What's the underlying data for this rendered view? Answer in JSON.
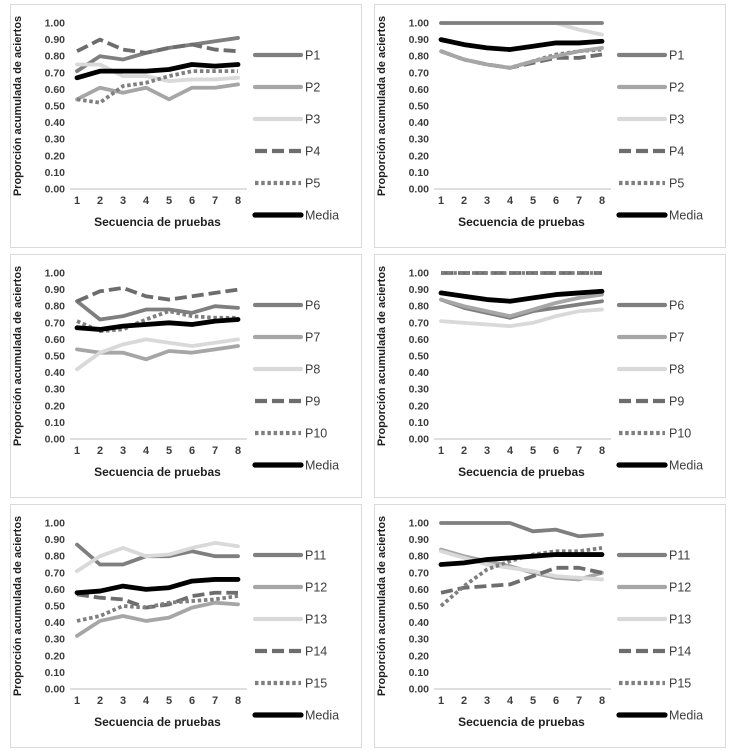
{
  "page": {
    "background": "#ffffff",
    "panel_border_color": "#d9d9d9",
    "axis_line_color": "#bfbfbf",
    "tick_text_color": "#3d3d3d",
    "axis_title_color": "#1f1f1f",
    "legend_text_color": "#3d3d3d"
  },
  "chart_data": [
    {
      "type": "line",
      "position": "top-left",
      "title": "",
      "xlabel": "Secuencia de pruebas",
      "ylabel": "Proporción acumulada de aciertos",
      "x": [
        1,
        2,
        3,
        4,
        5,
        6,
        7,
        8
      ],
      "ylim": [
        0.0,
        1.0
      ],
      "yticks": [
        "1.00",
        "0.90",
        "0.80",
        "0.70",
        "0.60",
        "0.50",
        "0.40",
        "0.30",
        "0.20",
        "0.10",
        "0.00"
      ],
      "grid": false,
      "legend_position": "right",
      "series": [
        {
          "name": "P1",
          "style": "solid",
          "color": "#7f7f7f",
          "width": 3.8,
          "values": [
            0.71,
            0.8,
            0.78,
            0.82,
            0.85,
            0.87,
            0.89,
            0.91
          ]
        },
        {
          "name": "P2",
          "style": "solid",
          "color": "#a6a6a6",
          "width": 3.8,
          "values": [
            0.54,
            0.61,
            0.58,
            0.61,
            0.54,
            0.61,
            0.61,
            0.63
          ]
        },
        {
          "name": "P3",
          "style": "solid",
          "color": "#d9d9d9",
          "width": 3.8,
          "values": [
            0.75,
            0.75,
            0.68,
            0.68,
            0.65,
            0.66,
            0.66,
            0.67
          ]
        },
        {
          "name": "P4",
          "style": "dash",
          "color": "#6d6d6d",
          "width": 3.8,
          "values": [
            0.83,
            0.9,
            0.84,
            0.82,
            0.85,
            0.87,
            0.84,
            0.83
          ]
        },
        {
          "name": "P5",
          "style": "dot",
          "color": "#7f7f7f",
          "width": 3.8,
          "values": [
            0.54,
            0.52,
            0.62,
            0.64,
            0.68,
            0.71,
            0.71,
            0.71
          ]
        },
        {
          "name": "Media",
          "style": "solid",
          "color": "#000000",
          "width": 4.8,
          "values": [
            0.67,
            0.71,
            0.71,
            0.71,
            0.72,
            0.75,
            0.74,
            0.75
          ]
        }
      ]
    },
    {
      "type": "line",
      "position": "top-right",
      "title": "",
      "xlabel": "Secuencia de pruebas",
      "ylabel": "Proporción acumulada de aciertos",
      "x": [
        1,
        2,
        3,
        4,
        5,
        6,
        7,
        8
      ],
      "ylim": [
        0.0,
        1.0
      ],
      "yticks": [
        "1.00",
        "0.90",
        "0.80",
        "0.70",
        "0.60",
        "0.50",
        "0.40",
        "0.30",
        "0.20",
        "0.10",
        "0.00"
      ],
      "grid": false,
      "legend_position": "right",
      "series": [
        {
          "name": "P1",
          "style": "solid",
          "color": "#7f7f7f",
          "width": 3.8,
          "z": 0,
          "values": [
            1.0,
            1.0,
            1.0,
            1.0,
            1.0,
            1.0,
            1.0,
            1.0
          ]
        },
        {
          "name": "P2",
          "style": "solid",
          "color": "#a6a6a6",
          "width": 3.8,
          "z": 1,
          "values": [
            0.83,
            0.78,
            0.75,
            0.73,
            0.77,
            0.8,
            0.83,
            0.85
          ]
        },
        {
          "name": "P3",
          "style": "solid",
          "color": "#d9d9d9",
          "width": 3.8,
          "z": -3,
          "values": [
            1.0,
            1.0,
            1.0,
            1.0,
            1.0,
            1.0,
            0.96,
            0.93
          ]
        },
        {
          "name": "P4",
          "style": "dash",
          "color": "#6d6d6d",
          "width": 3.8,
          "z": -2,
          "values": [
            0.83,
            0.78,
            0.75,
            0.73,
            0.76,
            0.79,
            0.79,
            0.81
          ]
        },
        {
          "name": "P5",
          "style": "dot",
          "color": "#7f7f7f",
          "width": 3.8,
          "z": -1.5,
          "values": [
            0.83,
            0.78,
            0.75,
            0.73,
            0.77,
            0.81,
            0.83,
            0.84
          ]
        },
        {
          "name": "Media",
          "style": "solid",
          "color": "#000000",
          "width": 4.8,
          "z": 5,
          "values": [
            0.9,
            0.87,
            0.85,
            0.84,
            0.86,
            0.88,
            0.88,
            0.89
          ]
        }
      ]
    },
    {
      "type": "line",
      "position": "middle-left",
      "title": "",
      "xlabel": "Secuencia de pruebas",
      "ylabel": "Proporción acumulada de aciertos",
      "x": [
        1,
        2,
        3,
        4,
        5,
        6,
        7,
        8
      ],
      "ylim": [
        0.0,
        1.0
      ],
      "yticks": [
        "1.00",
        "0.90",
        "0.80",
        "0.70",
        "0.60",
        "0.50",
        "0.40",
        "0.30",
        "0.20",
        "0.10",
        "0.00"
      ],
      "grid": false,
      "legend_position": "right",
      "series": [
        {
          "name": "P6",
          "style": "solid",
          "color": "#7f7f7f",
          "width": 3.8,
          "values": [
            0.83,
            0.72,
            0.74,
            0.78,
            0.78,
            0.76,
            0.8,
            0.79
          ]
        },
        {
          "name": "P7",
          "style": "solid",
          "color": "#a6a6a6",
          "width": 3.8,
          "values": [
            0.54,
            0.52,
            0.52,
            0.48,
            0.53,
            0.52,
            0.54,
            0.56
          ]
        },
        {
          "name": "P8",
          "style": "solid",
          "color": "#d9d9d9",
          "width": 3.8,
          "values": [
            0.42,
            0.52,
            0.57,
            0.6,
            0.58,
            0.56,
            0.58,
            0.6
          ]
        },
        {
          "name": "P9",
          "style": "dash",
          "color": "#6d6d6d",
          "width": 3.8,
          "values": [
            0.83,
            0.89,
            0.91,
            0.86,
            0.84,
            0.86,
            0.88,
            0.9
          ]
        },
        {
          "name": "P10",
          "style": "dot",
          "color": "#7f7f7f",
          "width": 3.8,
          "values": [
            0.71,
            0.65,
            0.66,
            0.72,
            0.77,
            0.74,
            0.73,
            0.73
          ]
        },
        {
          "name": "Media",
          "style": "solid",
          "color": "#000000",
          "width": 4.8,
          "values": [
            0.67,
            0.66,
            0.68,
            0.69,
            0.7,
            0.69,
            0.71,
            0.72
          ]
        }
      ]
    },
    {
      "type": "line",
      "position": "middle-right",
      "title": "",
      "xlabel": "Secuencia de pruebas",
      "ylabel": "Proporción acumulada de aciertos",
      "x": [
        1,
        2,
        3,
        4,
        5,
        6,
        7,
        8
      ],
      "ylim": [
        0.0,
        1.0
      ],
      "yticks": [
        "1.00",
        "0.90",
        "0.80",
        "0.70",
        "0.60",
        "0.50",
        "0.40",
        "0.30",
        "0.20",
        "0.10",
        "0.00"
      ],
      "grid": false,
      "legend_position": "right",
      "series": [
        {
          "name": "P6",
          "style": "solid",
          "color": "#7f7f7f",
          "width": 3.8,
          "values": [
            0.84,
            0.79,
            0.76,
            0.73,
            0.77,
            0.79,
            0.81,
            0.83
          ]
        },
        {
          "name": "P7",
          "style": "solid",
          "color": "#a6a6a6",
          "width": 3.8,
          "values": [
            0.84,
            0.8,
            0.77,
            0.74,
            0.78,
            0.82,
            0.85,
            0.87
          ]
        },
        {
          "name": "P8",
          "style": "solid",
          "color": "#d9d9d9",
          "width": 3.8,
          "values": [
            0.71,
            0.7,
            0.69,
            0.68,
            0.7,
            0.74,
            0.77,
            0.78
          ]
        },
        {
          "name": "P9",
          "style": "dash",
          "color": "#6d6d6d",
          "width": 3.8,
          "values": [
            1.0,
            1.0,
            1.0,
            1.0,
            1.0,
            1.0,
            1.0,
            1.0
          ]
        },
        {
          "name": "P10",
          "style": "dot",
          "color": "#7f7f7f",
          "width": 3.8,
          "values": [
            1.0,
            1.0,
            1.0,
            1.0,
            1.0,
            1.0,
            1.0,
            1.0
          ]
        },
        {
          "name": "Media",
          "style": "solid",
          "color": "#000000",
          "width": 4.8,
          "values": [
            0.88,
            0.86,
            0.84,
            0.83,
            0.85,
            0.87,
            0.88,
            0.89
          ]
        }
      ]
    },
    {
      "type": "line",
      "position": "bottom-left",
      "title": "",
      "xlabel": "Secuencia de pruebas",
      "ylabel": "Proporción acumulada de aciertos",
      "x": [
        1,
        2,
        3,
        4,
        5,
        6,
        7,
        8
      ],
      "ylim": [
        0.0,
        1.0
      ],
      "yticks": [
        "1.00",
        "0.90",
        "0.80",
        "0.70",
        "0.60",
        "0.50",
        "0.40",
        "0.30",
        "0.20",
        "0.10",
        "0.00"
      ],
      "grid": false,
      "legend_position": "right",
      "series": [
        {
          "name": "P11",
          "style": "solid",
          "color": "#7f7f7f",
          "width": 3.8,
          "values": [
            0.87,
            0.75,
            0.75,
            0.8,
            0.8,
            0.83,
            0.8,
            0.8
          ]
        },
        {
          "name": "P12",
          "style": "solid",
          "color": "#a6a6a6",
          "width": 3.8,
          "values": [
            0.32,
            0.41,
            0.44,
            0.41,
            0.43,
            0.49,
            0.52,
            0.51
          ]
        },
        {
          "name": "P13",
          "style": "solid",
          "color": "#d9d9d9",
          "width": 3.8,
          "values": [
            0.71,
            0.8,
            0.85,
            0.8,
            0.81,
            0.85,
            0.88,
            0.86
          ]
        },
        {
          "name": "P14",
          "style": "dash",
          "color": "#6d6d6d",
          "width": 3.8,
          "values": [
            0.57,
            0.55,
            0.54,
            0.49,
            0.51,
            0.56,
            0.58,
            0.58
          ]
        },
        {
          "name": "P15",
          "style": "dot",
          "color": "#7f7f7f",
          "width": 3.8,
          "values": [
            0.41,
            0.44,
            0.5,
            0.49,
            0.52,
            0.53,
            0.54,
            0.56
          ]
        },
        {
          "name": "Media",
          "style": "solid",
          "color": "#000000",
          "width": 4.8,
          "values": [
            0.58,
            0.59,
            0.62,
            0.6,
            0.61,
            0.65,
            0.66,
            0.66
          ]
        }
      ]
    },
    {
      "type": "line",
      "position": "bottom-right",
      "title": "",
      "xlabel": "Secuencia de pruebas",
      "ylabel": "Proporción acumulada de aciertos",
      "x": [
        1,
        2,
        3,
        4,
        5,
        6,
        7,
        8
      ],
      "ylim": [
        0.0,
        1.0
      ],
      "yticks": [
        "1.00",
        "0.90",
        "0.80",
        "0.70",
        "0.60",
        "0.50",
        "0.40",
        "0.30",
        "0.20",
        "0.10",
        "0.00"
      ],
      "grid": false,
      "legend_position": "right",
      "series": [
        {
          "name": "P11",
          "style": "solid",
          "color": "#7f7f7f",
          "width": 3.8,
          "values": [
            1.0,
            1.0,
            1.0,
            1.0,
            0.95,
            0.96,
            0.92,
            0.93
          ]
        },
        {
          "name": "P12",
          "style": "solid",
          "color": "#a6a6a6",
          "width": 3.8,
          "values": [
            0.84,
            0.8,
            0.77,
            0.74,
            0.7,
            0.67,
            0.66,
            0.7
          ]
        },
        {
          "name": "P13",
          "style": "solid",
          "color": "#d9d9d9",
          "width": 3.8,
          "values": [
            0.83,
            0.79,
            0.75,
            0.73,
            0.71,
            0.68,
            0.67,
            0.66
          ]
        },
        {
          "name": "P14",
          "style": "dash",
          "color": "#6d6d6d",
          "width": 3.8,
          "values": [
            0.58,
            0.61,
            0.62,
            0.63,
            0.68,
            0.73,
            0.73,
            0.7
          ]
        },
        {
          "name": "P15",
          "style": "dot",
          "color": "#7f7f7f",
          "width": 3.8,
          "values": [
            0.5,
            0.62,
            0.72,
            0.77,
            0.81,
            0.83,
            0.83,
            0.85
          ]
        },
        {
          "name": "Media",
          "style": "solid",
          "color": "#000000",
          "width": 4.8,
          "values": [
            0.75,
            0.76,
            0.78,
            0.79,
            0.8,
            0.81,
            0.81,
            0.81
          ]
        }
      ]
    }
  ]
}
